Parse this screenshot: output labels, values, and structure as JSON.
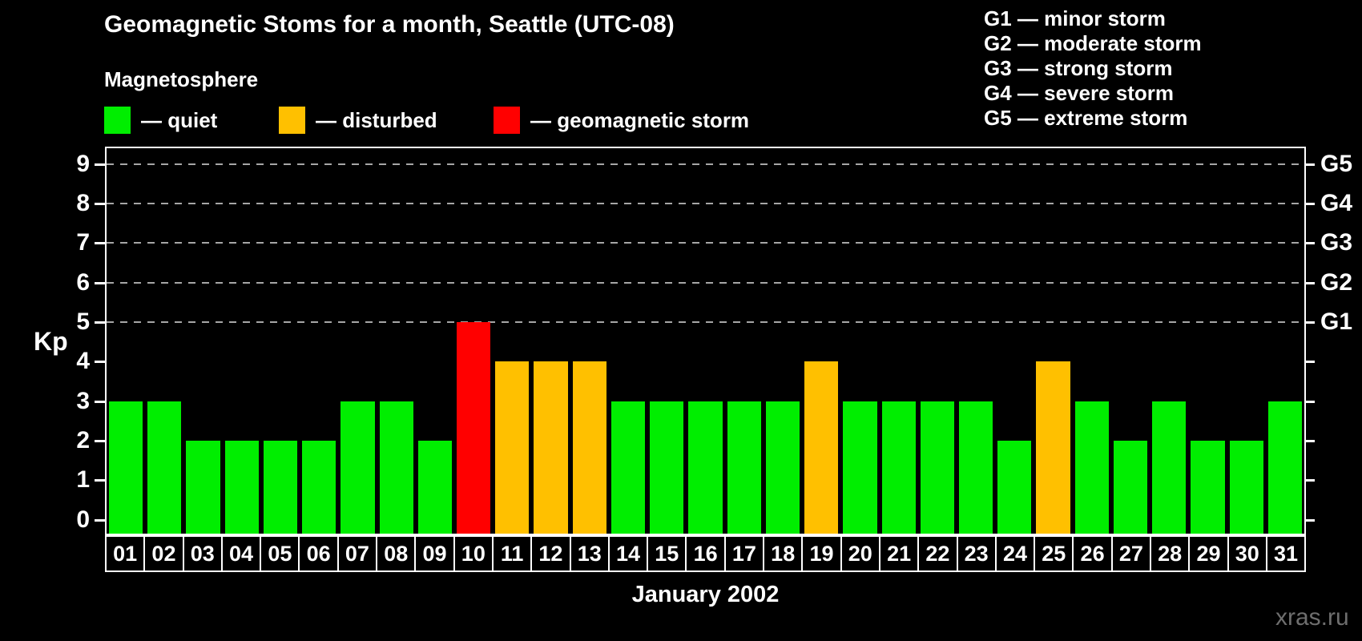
{
  "header": {
    "title": "Geomagnetic Stoms for a month, Seattle (UTC-08)"
  },
  "legend": {
    "title": "Magnetosphere",
    "items": [
      {
        "name": "quiet",
        "label": "— quiet",
        "color": "#00EE00"
      },
      {
        "name": "disturbed",
        "label": "— disturbed",
        "color": "#FFC000"
      },
      {
        "name": "geomagnetic-storm",
        "label": "— geomagnetic storm",
        "color": "#FF0000"
      }
    ]
  },
  "g_legend": {
    "lines": [
      "G1 — minor storm",
      "G2 — moderate storm",
      "G3 — strong storm",
      "G4 — severe storm",
      "G5 — extreme storm"
    ]
  },
  "axes": {
    "y_label": "Kp",
    "x_label": "January 2002",
    "y_ticks": [
      0,
      1,
      2,
      3,
      4,
      5,
      6,
      7,
      8,
      9
    ],
    "right_labels": [
      {
        "kp": 5,
        "label": "G1"
      },
      {
        "kp": 6,
        "label": "G2"
      },
      {
        "kp": 7,
        "label": "G3"
      },
      {
        "kp": 8,
        "label": "G4"
      },
      {
        "kp": 9,
        "label": "G5"
      }
    ]
  },
  "footer": {
    "watermark": "xras.ru"
  },
  "chart_data": {
    "type": "bar",
    "title": "Geomagnetic Stoms for a month, Seattle (UTC-08)",
    "xlabel": "January 2002",
    "ylabel": "Kp",
    "ylim": [
      -0.35,
      9.4
    ],
    "grid_kp": [
      5,
      6,
      7,
      8,
      9
    ],
    "grid_style": "dashed",
    "grid_color": "#a6a6a6",
    "legend_position": "top",
    "categories": [
      "01",
      "02",
      "03",
      "04",
      "05",
      "06",
      "07",
      "08",
      "09",
      "10",
      "11",
      "12",
      "13",
      "14",
      "15",
      "16",
      "17",
      "18",
      "19",
      "20",
      "21",
      "22",
      "23",
      "24",
      "25",
      "26",
      "27",
      "28",
      "29",
      "30",
      "31"
    ],
    "values": [
      3,
      3,
      2,
      2,
      2,
      2,
      3,
      3,
      2,
      5,
      4,
      4,
      4,
      3,
      3,
      3,
      3,
      3,
      4,
      3,
      3,
      3,
      3,
      2,
      4,
      3,
      2,
      3,
      2,
      2,
      3
    ],
    "statuses": [
      "quiet",
      "quiet",
      "quiet",
      "quiet",
      "quiet",
      "quiet",
      "quiet",
      "quiet",
      "quiet",
      "geomagnetic-storm",
      "disturbed",
      "disturbed",
      "disturbed",
      "quiet",
      "quiet",
      "quiet",
      "quiet",
      "quiet",
      "disturbed",
      "quiet",
      "quiet",
      "quiet",
      "quiet",
      "quiet",
      "disturbed",
      "quiet",
      "quiet",
      "quiet",
      "quiet",
      "quiet",
      "quiet"
    ],
    "status_colors": {
      "quiet": "#00EE00",
      "disturbed": "#FFC000",
      "geomagnetic-storm": "#FF0000"
    }
  }
}
